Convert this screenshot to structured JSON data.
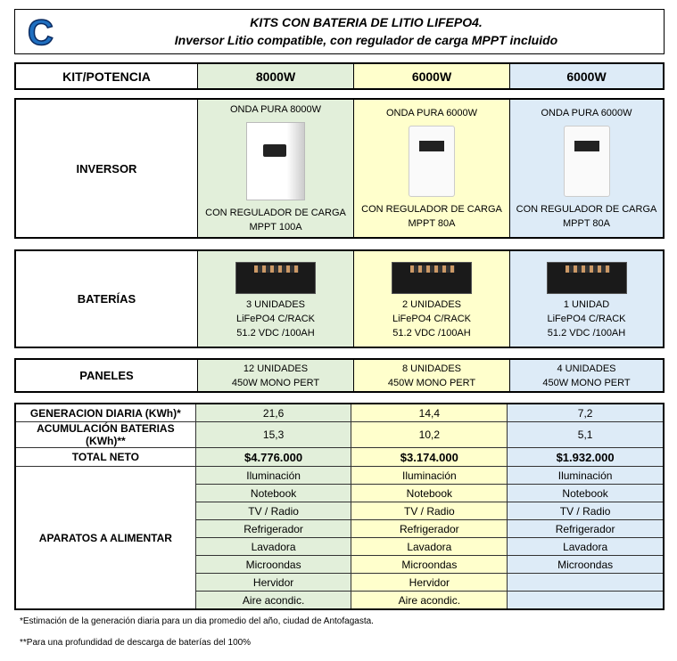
{
  "header": {
    "logo": "C",
    "title": "KITS CON BATERIA DE LITIO LIFEPO4.",
    "subtitle": "Inversor Litio compatible, con regulador de carga MPPT incluido"
  },
  "colors": {
    "kit1": "#e2efda",
    "kit2": "#ffffcc",
    "kit3": "#ddebf7"
  },
  "row_labels": {
    "kit": "KIT/POTENCIA",
    "inversor": "INVERSOR",
    "baterias": "BATERÍAS",
    "paneles": "PANELES",
    "generacion": "GENERACION DIARIA (KWh)*",
    "acumulacion": "ACUMULACIÓN BATERIAS (KWh)**",
    "total": "TOTAL NETO",
    "aparatos": "APARATOS A ALIMENTAR"
  },
  "kits": [
    {
      "potencia": "8000W",
      "inv_top": "ONDA PURA 8000W",
      "inv_b1": "CON REGULADOR DE CARGA",
      "inv_b2": "MPPT 100A",
      "bat1": "3 UNIDADES",
      "bat2": "LiFePO4 C/RACK",
      "bat3": "51.2 VDC /100AH",
      "pan1": "12 UNIDADES",
      "pan2": "450W MONO PERT",
      "gen": "21,6",
      "acum": "15,3",
      "total": "$4.776.000",
      "aparatos": [
        "Iluminación",
        "Notebook",
        "TV / Radio",
        "Refrigerador",
        "Lavadora",
        "Microondas",
        "Hervidor",
        "Aire acondic."
      ]
    },
    {
      "potencia": "6000W",
      "inv_top": "ONDA PURA 6000W",
      "inv_b1": "CON REGULADOR DE CARGA",
      "inv_b2": "MPPT 80A",
      "bat1": "2 UNIDADES",
      "bat2": "LiFePO4 C/RACK",
      "bat3": "51.2 VDC /100AH",
      "pan1": "8 UNIDADES",
      "pan2": "450W MONO PERT",
      "gen": "14,4",
      "acum": "10,2",
      "total": "$3.174.000",
      "aparatos": [
        "Iluminación",
        "Notebook",
        "TV / Radio",
        "Refrigerador",
        "Lavadora",
        "Microondas",
        "Hervidor",
        "Aire acondic."
      ]
    },
    {
      "potencia": "6000W",
      "inv_top": "ONDA PURA 6000W",
      "inv_b1": "CON REGULADOR DE CARGA",
      "inv_b2": "MPPT 80A",
      "bat1": "1 UNIDAD",
      "bat2": "LiFePO4 C/RACK",
      "bat3": "51.2 VDC /100AH",
      "pan1": "4 UNIDADES",
      "pan2": "450W MONO PERT",
      "gen": "7,2",
      "acum": "5,1",
      "total": "$1.932.000",
      "aparatos": [
        "Iluminación",
        "Notebook",
        "TV / Radio",
        "Refrigerador",
        "Lavadora",
        "Microondas",
        "",
        ""
      ]
    }
  ],
  "footnotes": [
    "*Estimación de la generación diaria para un dia promedio del año, ciudad de Antofagasta.",
    "**Para una profundidad de descarga de baterías del 100%"
  ]
}
